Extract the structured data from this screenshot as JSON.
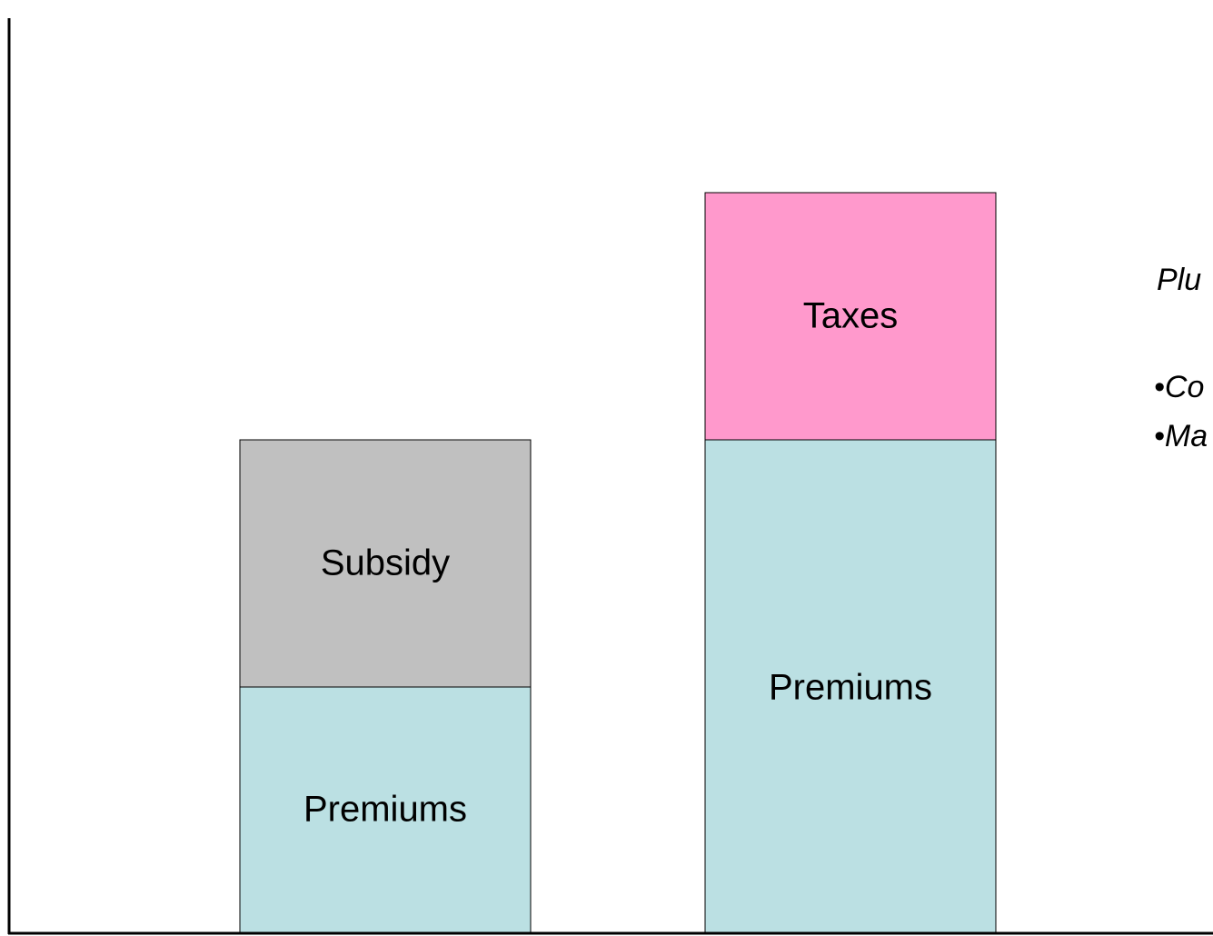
{
  "bars": [
    {
      "segments": [
        {
          "label": "Premiums"
        },
        {
          "label": "Subsidy"
        }
      ]
    },
    {
      "segments": [
        {
          "label": "Premiums"
        },
        {
          "label": "Taxes"
        }
      ]
    }
  ],
  "note": {
    "heading": "Plu",
    "bullets": [
      "•Co",
      "•Ma"
    ]
  }
}
